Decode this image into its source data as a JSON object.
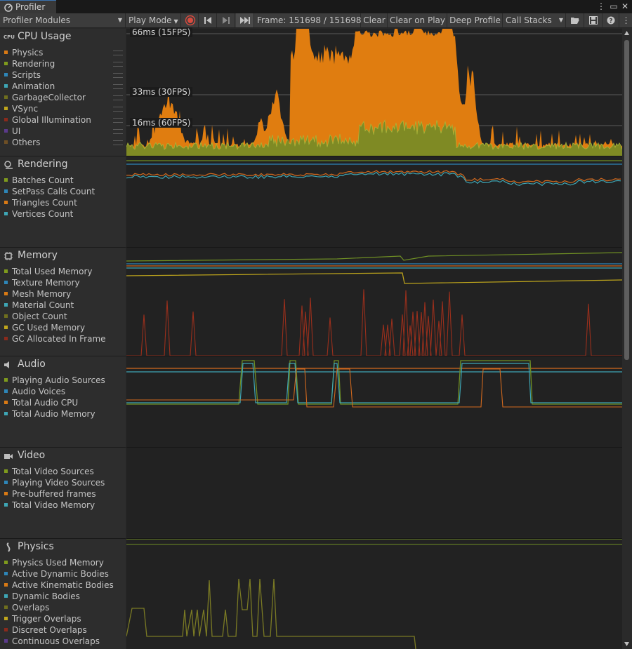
{
  "window": {
    "title": "Profiler",
    "menu_icon": "kebab-icon",
    "maximize_icon": "maximize-icon",
    "close_icon": "close-icon"
  },
  "toolbar": {
    "modules_dropdown": "Profiler Modules",
    "play_mode": "Play Mode",
    "frame_label": "Frame: 151698 / 151698",
    "clear": "Clear",
    "clear_on_play": "Clear on Play",
    "deep_profile": "Deep Profile",
    "call_stacks": "Call Stacks"
  },
  "cpu": {
    "title": "CPU Usage",
    "legend": [
      {
        "label": "Physics",
        "color": "#d97a15"
      },
      {
        "label": "Rendering",
        "color": "#7f9b1d"
      },
      {
        "label": "Scripts",
        "color": "#2e86b8"
      },
      {
        "label": "Animation",
        "color": "#3ea6b5"
      },
      {
        "label": "GarbageCollector",
        "color": "#6f6f1e"
      },
      {
        "label": "VSync",
        "color": "#bfa61c"
      },
      {
        "label": "Global Illumination",
        "color": "#8b2a1c"
      },
      {
        "label": "UI",
        "color": "#5b3a8c"
      },
      {
        "label": "Others",
        "color": "#6e4f25"
      }
    ],
    "markers": {
      "m66": "66ms (15FPS)",
      "m33": "33ms (30FPS)",
      "m16": "16ms (60FPS)"
    }
  },
  "rendering": {
    "title": "Rendering",
    "legend": [
      {
        "label": "Batches Count",
        "color": "#7f9b1d"
      },
      {
        "label": "SetPass Calls Count",
        "color": "#2e86b8"
      },
      {
        "label": "Triangles Count",
        "color": "#d97a15"
      },
      {
        "label": "Vertices Count",
        "color": "#3ea6b5"
      }
    ]
  },
  "memory": {
    "title": "Memory",
    "legend": [
      {
        "label": "Total Used Memory",
        "color": "#7f9b1d"
      },
      {
        "label": "Texture Memory",
        "color": "#2e86b8"
      },
      {
        "label": "Mesh Memory",
        "color": "#d97a15"
      },
      {
        "label": "Material Count",
        "color": "#3ea6b5"
      },
      {
        "label": "Object Count",
        "color": "#6f6f1e"
      },
      {
        "label": "GC Used Memory",
        "color": "#bfa61c"
      },
      {
        "label": "GC Allocated In Frame",
        "color": "#8b2a1c"
      }
    ]
  },
  "audio": {
    "title": "Audio",
    "legend": [
      {
        "label": "Playing Audio Sources",
        "color": "#7f9b1d"
      },
      {
        "label": "Audio Voices",
        "color": "#2e86b8"
      },
      {
        "label": "Total Audio CPU",
        "color": "#d97a15"
      },
      {
        "label": "Total Audio Memory",
        "color": "#3ea6b5"
      }
    ]
  },
  "video": {
    "title": "Video",
    "legend": [
      {
        "label": "Total Video Sources",
        "color": "#7f9b1d"
      },
      {
        "label": "Playing Video Sources",
        "color": "#2e86b8"
      },
      {
        "label": "Pre-buffered frames",
        "color": "#d97a15"
      },
      {
        "label": "Total Video Memory",
        "color": "#3ea6b5"
      }
    ]
  },
  "physics": {
    "title": "Physics",
    "legend": [
      {
        "label": "Physics Used Memory",
        "color": "#7f9b1d"
      },
      {
        "label": "Active Dynamic Bodies",
        "color": "#2e86b8"
      },
      {
        "label": "Active Kinematic Bodies",
        "color": "#d97a15"
      },
      {
        "label": "Dynamic Bodies",
        "color": "#3ea6b5"
      },
      {
        "label": "Overlaps",
        "color": "#6f6f1e"
      },
      {
        "label": "Trigger Overlaps",
        "color": "#bfa61c"
      },
      {
        "label": "Discreet Overlaps",
        "color": "#8b2a1c"
      },
      {
        "label": "Continuous Overlaps",
        "color": "#5b3a8c"
      }
    ]
  }
}
